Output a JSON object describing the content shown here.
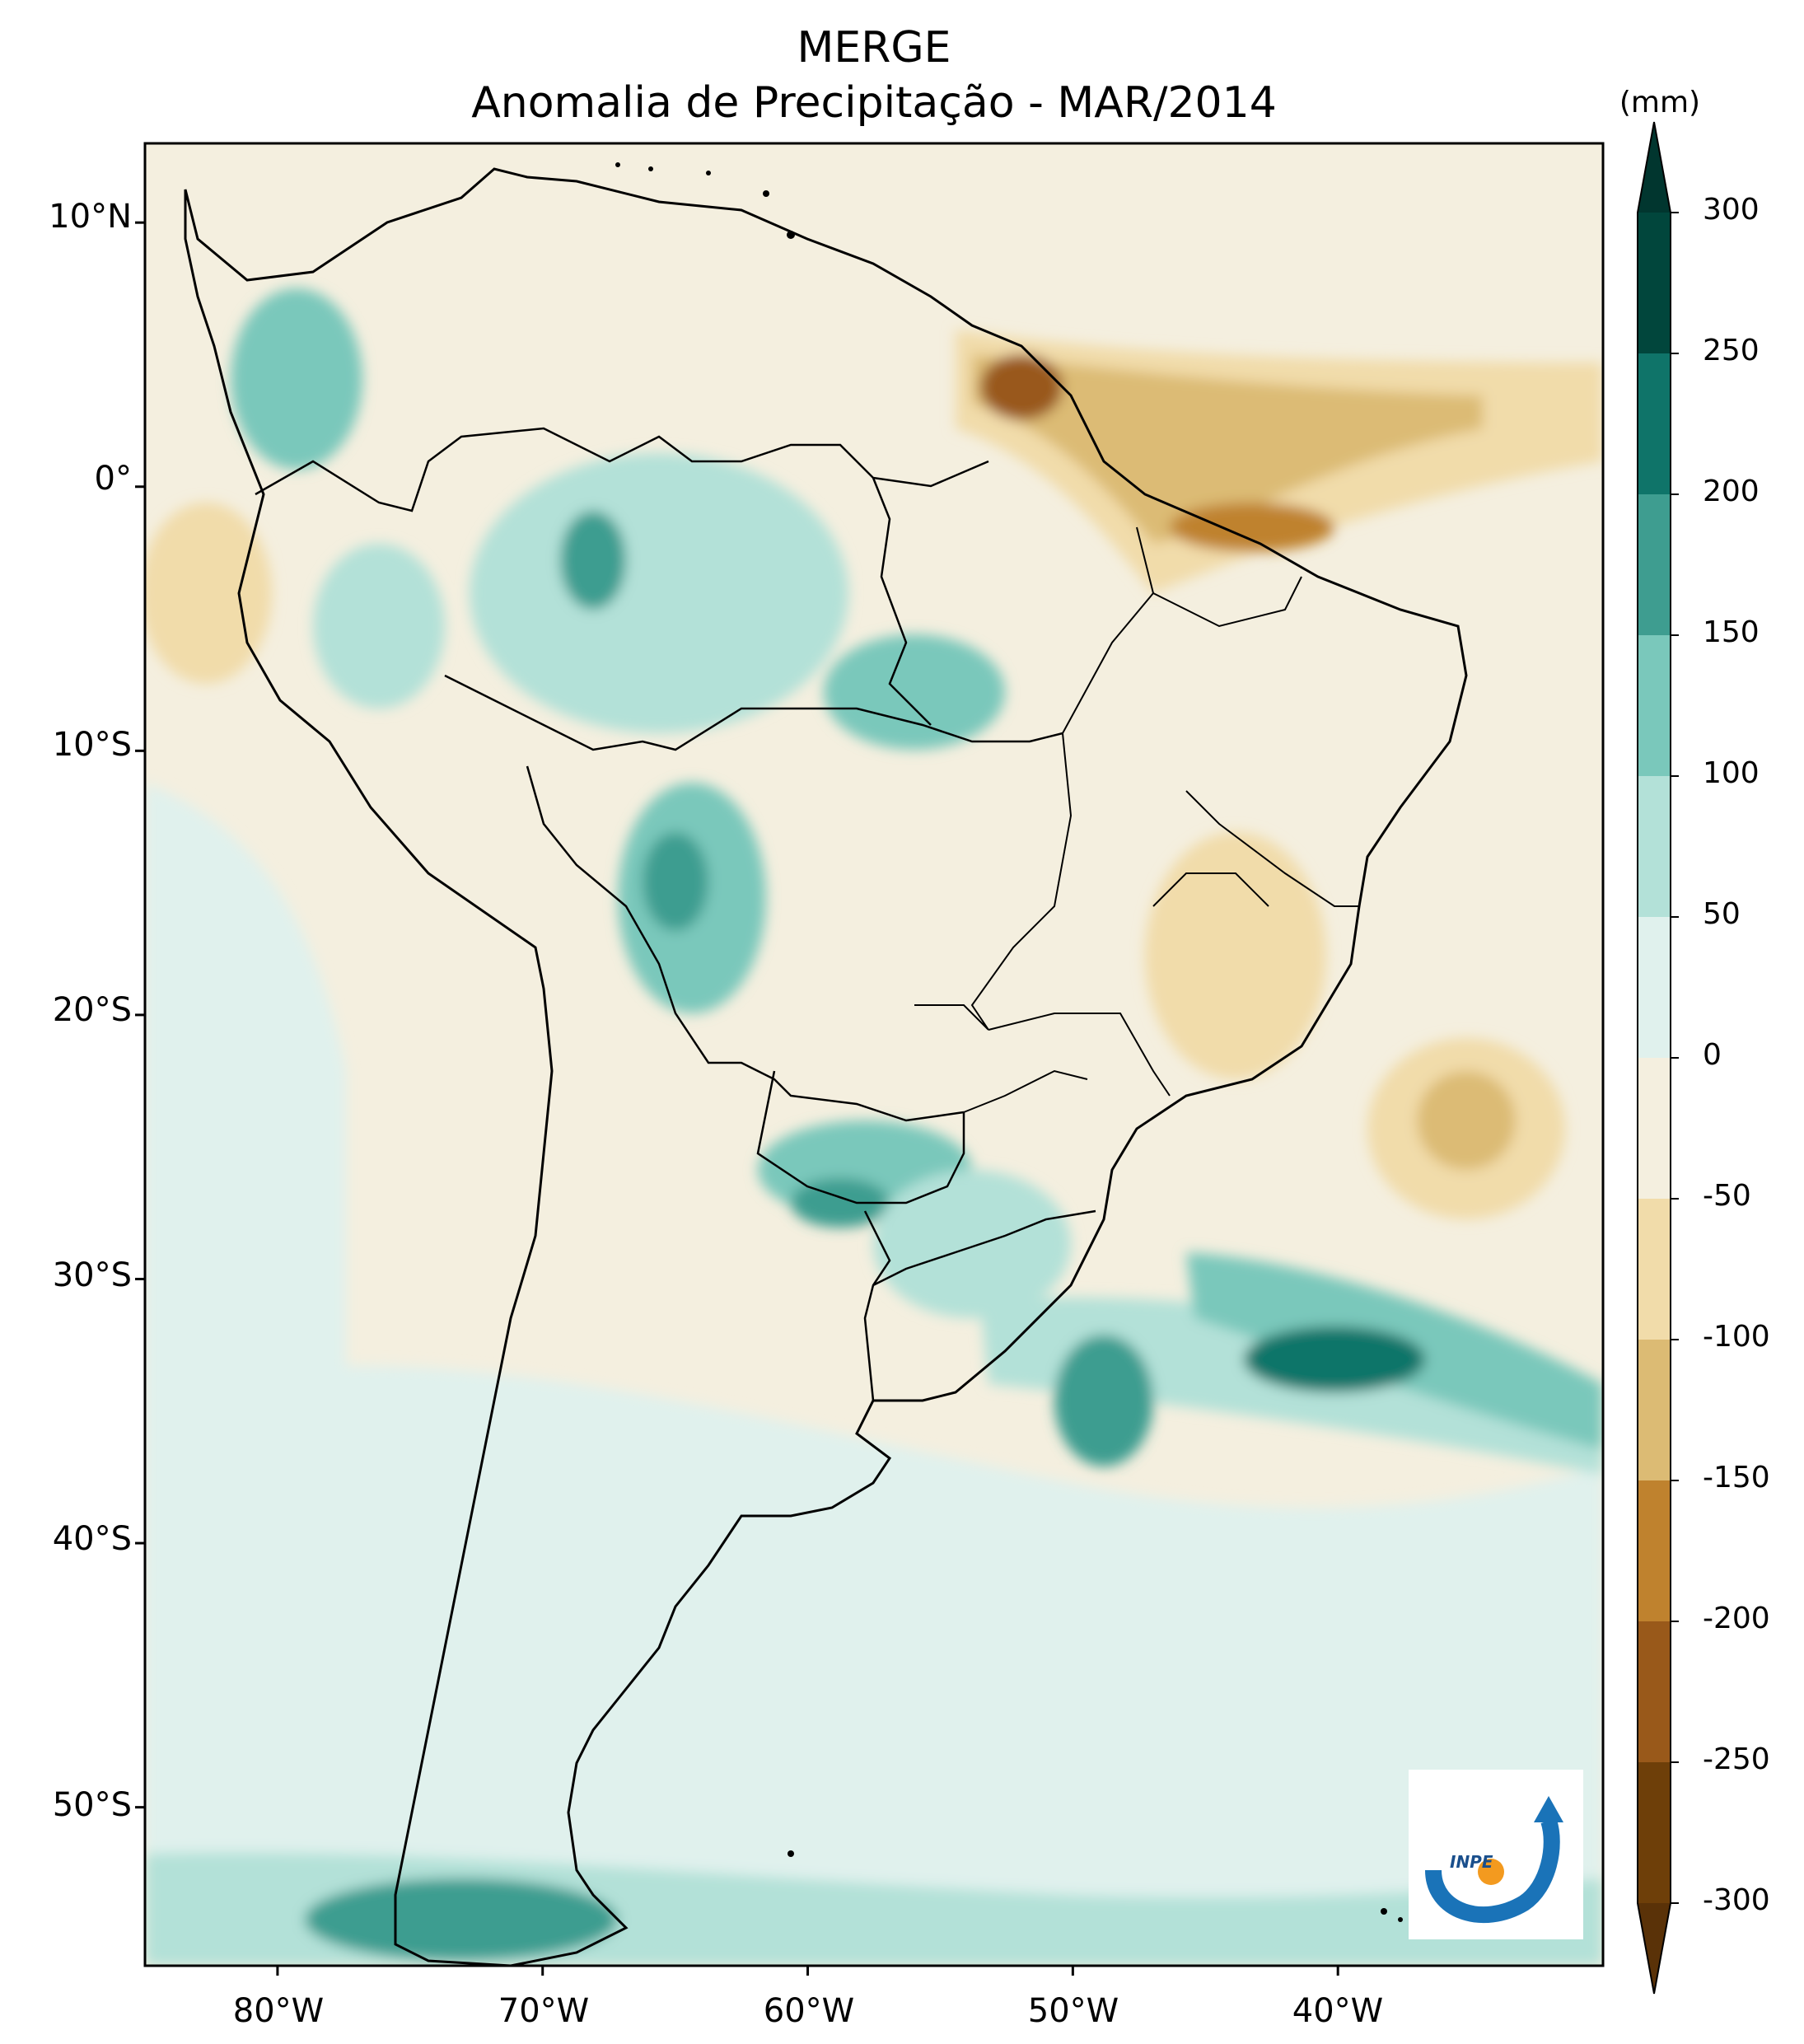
{
  "title": "MERGE",
  "subtitle": "Anomalia de Precipitação - MAR/2014",
  "colorbar": {
    "unit": "(mm)",
    "ticks": [
      "300",
      "250",
      "200",
      "150",
      "100",
      "50",
      "0",
      "-50",
      "-100",
      "-150",
      "-200",
      "-250",
      "-300"
    ],
    "bins": [
      {
        "range": [
          250,
          300
        ],
        "color": "#01463c"
      },
      {
        "range": [
          200,
          250
        ],
        "color": "#0f7469"
      },
      {
        "range": [
          150,
          200
        ],
        "color": "#3e9d90"
      },
      {
        "range": [
          100,
          150
        ],
        "color": "#7ac8bb"
      },
      {
        "range": [
          50,
          100
        ],
        "color": "#b3e1d8"
      },
      {
        "range": [
          0,
          50
        ],
        "color": "#e0f1ed"
      },
      {
        "range": [
          -50,
          0
        ],
        "color": "#f4efdf"
      },
      {
        "range": [
          -100,
          -50
        ],
        "color": "#f1dcaa"
      },
      {
        "range": [
          -150,
          -100
        ],
        "color": "#dcbb74"
      },
      {
        "range": [
          -200,
          -150
        ],
        "color": "#bf822e"
      },
      {
        "range": [
          -250,
          -200
        ],
        "color": "#99591a"
      },
      {
        "range": [
          -300,
          -250
        ],
        "color": "#6e3f09"
      }
    ],
    "over_color": "#01362f",
    "under_color": "#5a3208"
  },
  "axes": {
    "lat_labels": [
      "10°N",
      "0°",
      "10°S",
      "20°S",
      "30°S",
      "40°S",
      "50°S"
    ],
    "lon_labels": [
      "80°W",
      "70°W",
      "60°W",
      "50°W",
      "40°W"
    ],
    "lon_range": [
      -85,
      -30
    ],
    "lat_range": [
      -56,
      13
    ]
  },
  "logo": {
    "text": "INPE"
  }
}
